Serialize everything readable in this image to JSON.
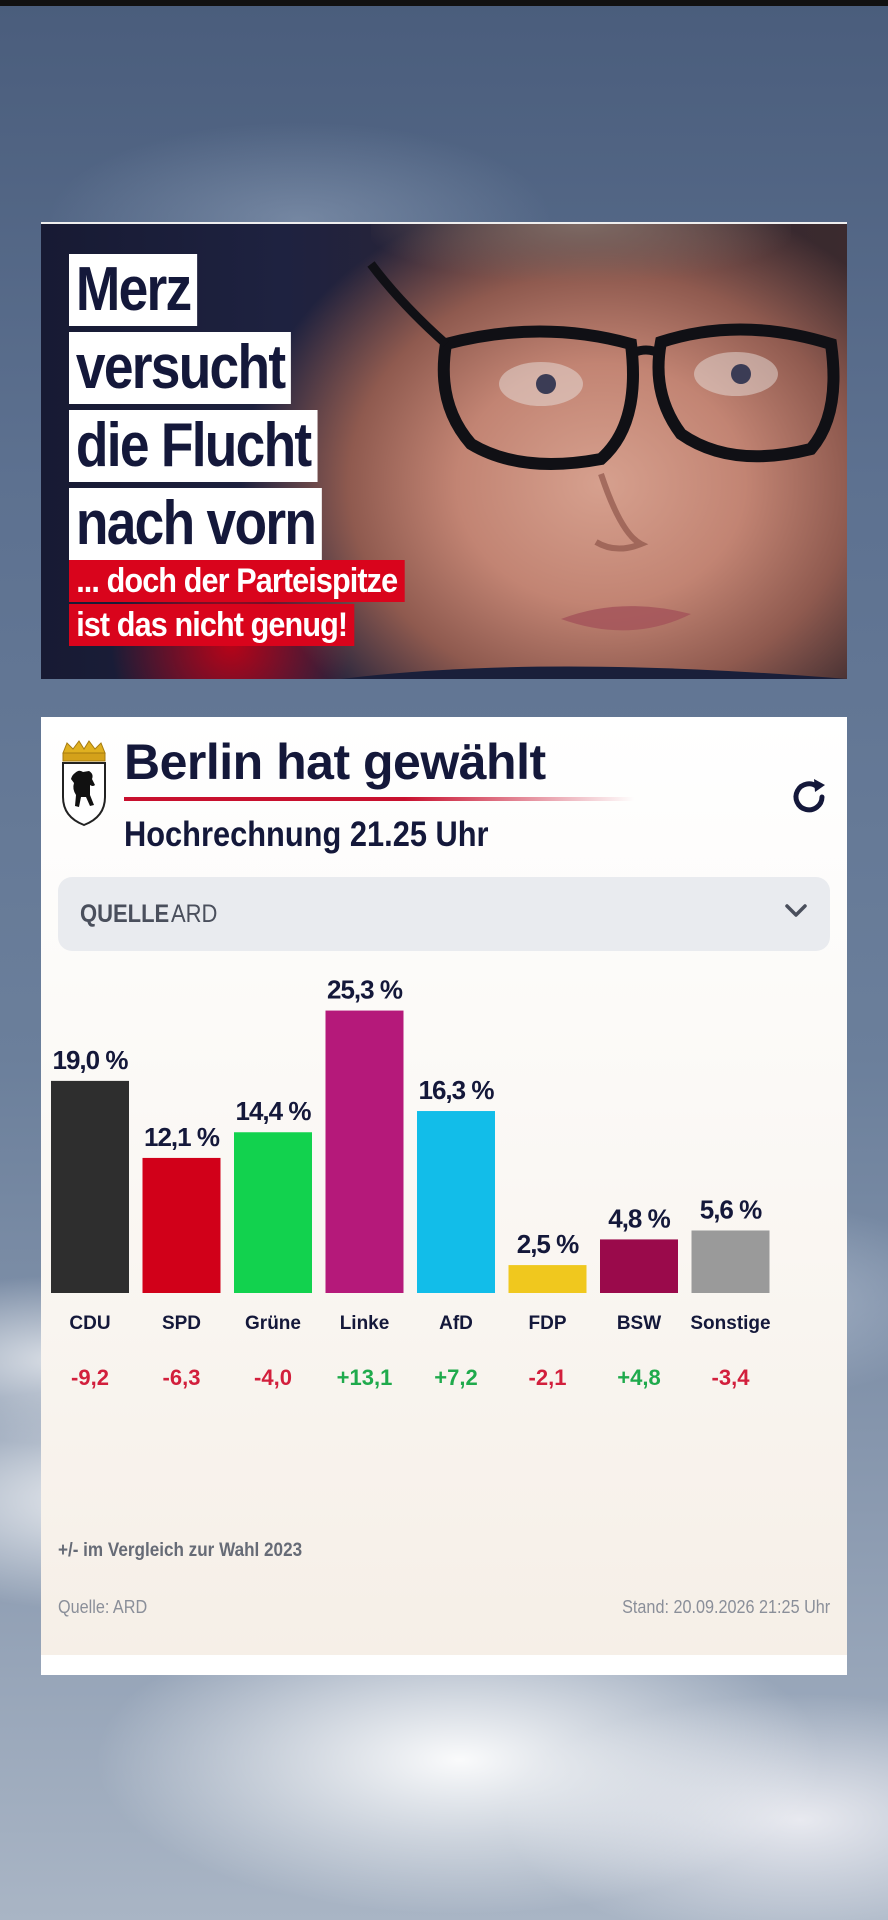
{
  "thumbnail": {
    "headline_lines": [
      "Merz",
      "versucht",
      "die Flucht",
      "nach vorn"
    ],
    "subhead_lines": [
      "... doch der Parteispitze",
      "ist das nicht genug!"
    ]
  },
  "card": {
    "title": "Berlin hat gewählt",
    "subtitle": "Hochrechnung 21.25 Uhr",
    "crest_icon": "berlin-bear-crest-icon",
    "refresh_icon": "refresh-icon",
    "source_select": {
      "label": "QUELLE",
      "value": "ARD",
      "icon": "chevron-down-icon"
    },
    "footnote": "+/- im Vergleich zur Wahl 2023",
    "source": "Quelle: ARD",
    "stand": "Stand: 20.09.2026 21:25 Uhr"
  },
  "chart_data": {
    "type": "bar",
    "categories": [
      "CDU",
      "SPD",
      "Grüne",
      "Linke",
      "AfD",
      "FDP",
      "BSW",
      "Sonstige"
    ],
    "values": [
      19.0,
      12.1,
      14.4,
      25.3,
      16.3,
      2.5,
      4.8,
      5.6
    ],
    "value_labels": [
      "19,0 %",
      "12,1 %",
      "14,4 %",
      "25,3 %",
      "16,3 %",
      "2,5 %",
      "4,8 %",
      "5,6 %"
    ],
    "changes": [
      -9.2,
      -6.3,
      -4.0,
      13.1,
      7.2,
      -2.1,
      4.8,
      -3.4
    ],
    "change_labels": [
      "-9,2",
      "-6,3",
      "-4,0",
      "+13,1",
      "+7,2",
      "-2,1",
      "+4,8",
      "-3,4"
    ],
    "colors": [
      "#2e2e2e",
      "#d10019",
      "#12d24e",
      "#b5197a",
      "#12bde9",
      "#f0c81e",
      "#9a0a4b",
      "#9a9a9a"
    ],
    "change_colors": {
      "negative": "#d21f3c",
      "positive": "#1faa4c"
    },
    "ylim": [
      0,
      27
    ],
    "grid": false,
    "legend": "none"
  }
}
